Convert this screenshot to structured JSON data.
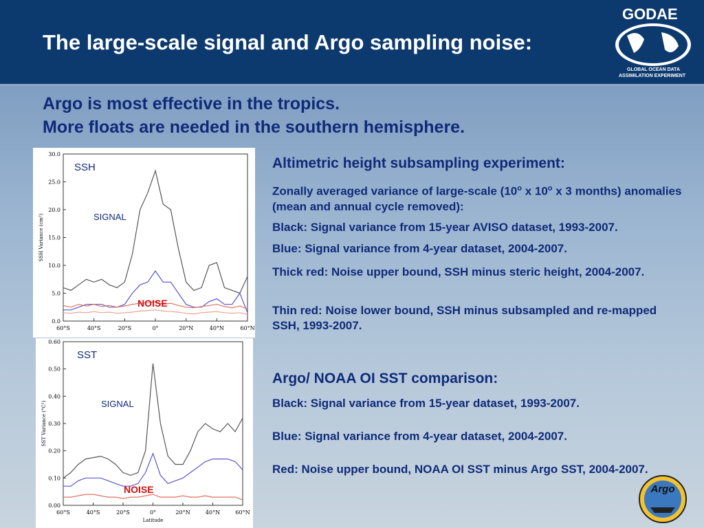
{
  "header": {
    "title": "The large-scale signal and Argo sampling noise:",
    "logo": {
      "name": "GODAE",
      "line1": "GLOBAL OCEAN DATA",
      "line2": "ASSIMILATION EXPERIMENT"
    }
  },
  "subtitle": [
    "Argo is most effective in the tropics.",
    "More floats are needed in the southern hemisphere."
  ],
  "ssh_text": {
    "heading": "Altimetric height subsampling experiment:",
    "desc": [
      "Zonally averaged variance of large-scale (10",
      "o",
      " x 10",
      "o",
      " x 3 months) anomalies (mean and annual cycle removed):"
    ],
    "items": [
      "Black: Signal variance from 15-year AVISO dataset, 1993-2007.",
      "Blue: Signal variance from 4-year dataset, 2004-2007.",
      "Thick red: Noise upper bound, SSH minus steric height, 2004-2007.",
      "Thin red: Noise lower bound, SSH minus subsampled and re-mapped SSH, 1993-2007."
    ]
  },
  "sst_text": {
    "heading": "Argo/ NOAA OI SST comparison:",
    "items": [
      "Black: Signal variance from 15-year dataset, 1993-2007.",
      "Blue: Signal variance from 4-year dataset, 2004-2007.",
      "Red: Noise upper bound, NOAA OI SST minus Argo SST, 2004-2007."
    ]
  },
  "argo_logo": "Argo",
  "chart_data": [
    {
      "type": "line",
      "ylabel": "SSH Variance (cm²)",
      "annotations": [
        "SSH",
        "SIGNAL",
        "NOISE"
      ],
      "x": [
        -60,
        -55,
        -50,
        -45,
        -40,
        -35,
        -30,
        -25,
        -20,
        -15,
        -10,
        -5,
        0,
        5,
        10,
        15,
        20,
        25,
        30,
        35,
        40,
        45,
        50,
        55,
        60
      ],
      "series": [
        {
          "color": "#555555",
          "values": [
            6,
            5.5,
            6.5,
            7.5,
            7,
            7.5,
            6.5,
            6,
            7,
            12,
            20,
            23,
            27,
            21,
            20,
            13,
            7,
            5.5,
            6,
            10,
            10.5,
            6,
            5.5,
            5,
            8
          ]
        },
        {
          "color": "#5555cc",
          "values": [
            2,
            2,
            2.5,
            3,
            3,
            3,
            2.5,
            2.5,
            3,
            5,
            6.5,
            7,
            9,
            7,
            7,
            5,
            3,
            2.5,
            2.5,
            3.5,
            4,
            3,
            3,
            5,
            1.5
          ]
        },
        {
          "color": "#e07060",
          "values": [
            2.8,
            2.5,
            3,
            2.7,
            3,
            2.6,
            2.8,
            2.5,
            2.7,
            3,
            3.2,
            3.3,
            3.5,
            3,
            3.2,
            2.8,
            2.5,
            2.4,
            2.6,
            2.8,
            3,
            2.6,
            2.4,
            2.7,
            2.2
          ]
        },
        {
          "color": "#f0a090",
          "values": [
            1.5,
            1.4,
            1.6,
            1.5,
            1.7,
            1.5,
            1.6,
            1.4,
            1.5,
            1.6,
            1.8,
            1.9,
            2,
            1.8,
            1.7,
            1.6,
            1.4,
            1.3,
            1.5,
            1.6,
            1.7,
            1.5,
            1.4,
            1.5,
            1.2
          ]
        }
      ],
      "xlim": [
        -60,
        60
      ],
      "ylim": [
        0,
        30
      ],
      "xticks": [
        {
          "value": -60,
          "label": "60°S"
        },
        {
          "value": -40,
          "label": "40°S"
        },
        {
          "value": -20,
          "label": "20°S"
        },
        {
          "value": 0,
          "label": "0°"
        },
        {
          "value": 20,
          "label": "20°N"
        },
        {
          "value": 40,
          "label": "40°N"
        },
        {
          "value": 60,
          "label": "60°N"
        }
      ],
      "yticks": [
        {
          "value": 0,
          "label": "0.0"
        },
        {
          "value": 5,
          "label": "5.0"
        },
        {
          "value": 10,
          "label": "10.0"
        },
        {
          "value": 15,
          "label": "15.0"
        },
        {
          "value": 20,
          "label": "20.0"
        },
        {
          "value": 25,
          "label": "25.0"
        },
        {
          "value": 30,
          "label": "30.0"
        }
      ]
    },
    {
      "type": "line",
      "xlabel": "Latitude",
      "ylabel": "SST Variance (°C²)",
      "annotations": [
        "SST",
        "SIGNAL",
        "NOISE"
      ],
      "x": [
        -60,
        -55,
        -50,
        -45,
        -40,
        -35,
        -30,
        -25,
        -20,
        -15,
        -10,
        -5,
        0,
        5,
        10,
        15,
        20,
        25,
        30,
        35,
        40,
        45,
        50,
        55,
        60
      ],
      "series": [
        {
          "color": "#555555",
          "values": [
            0.1,
            0.12,
            0.15,
            0.17,
            0.175,
            0.18,
            0.17,
            0.15,
            0.12,
            0.11,
            0.12,
            0.2,
            0.52,
            0.3,
            0.18,
            0.15,
            0.15,
            0.2,
            0.27,
            0.3,
            0.28,
            0.27,
            0.3,
            0.27,
            0.32
          ]
        },
        {
          "color": "#5555cc",
          "values": [
            0.07,
            0.07,
            0.09,
            0.1,
            0.1,
            0.1,
            0.09,
            0.08,
            0.07,
            0.07,
            0.08,
            0.12,
            0.19,
            0.11,
            0.08,
            0.09,
            0.1,
            0.12,
            0.14,
            0.16,
            0.17,
            0.17,
            0.17,
            0.16,
            0.13
          ]
        },
        {
          "color": "#e07060",
          "values": [
            0.03,
            0.03,
            0.035,
            0.04,
            0.04,
            0.035,
            0.03,
            0.03,
            0.025,
            0.03,
            0.03,
            0.035,
            0.04,
            0.03,
            0.03,
            0.03,
            0.035,
            0.03,
            0.03,
            0.035,
            0.03,
            0.03,
            0.03,
            0.03,
            0.02
          ]
        }
      ],
      "xlim": [
        -60,
        60
      ],
      "ylim": [
        0,
        0.6
      ],
      "xticks": [
        {
          "value": -60,
          "label": "60°S"
        },
        {
          "value": -40,
          "label": "40°S"
        },
        {
          "value": -20,
          "label": "20°S"
        },
        {
          "value": 0,
          "label": "0°"
        },
        {
          "value": 20,
          "label": "20°N"
        },
        {
          "value": 40,
          "label": "40°N"
        },
        {
          "value": 60,
          "label": "60°N"
        }
      ],
      "yticks": [
        {
          "value": 0,
          "label": "0.00"
        },
        {
          "value": 0.1,
          "label": "0.10"
        },
        {
          "value": 0.2,
          "label": "0.20"
        },
        {
          "value": 0.3,
          "label": "0.30"
        },
        {
          "value": 0.4,
          "label": "0.40"
        },
        {
          "value": 0.5,
          "label": "0.50"
        },
        {
          "value": 0.6,
          "label": "0.60"
        }
      ]
    }
  ]
}
